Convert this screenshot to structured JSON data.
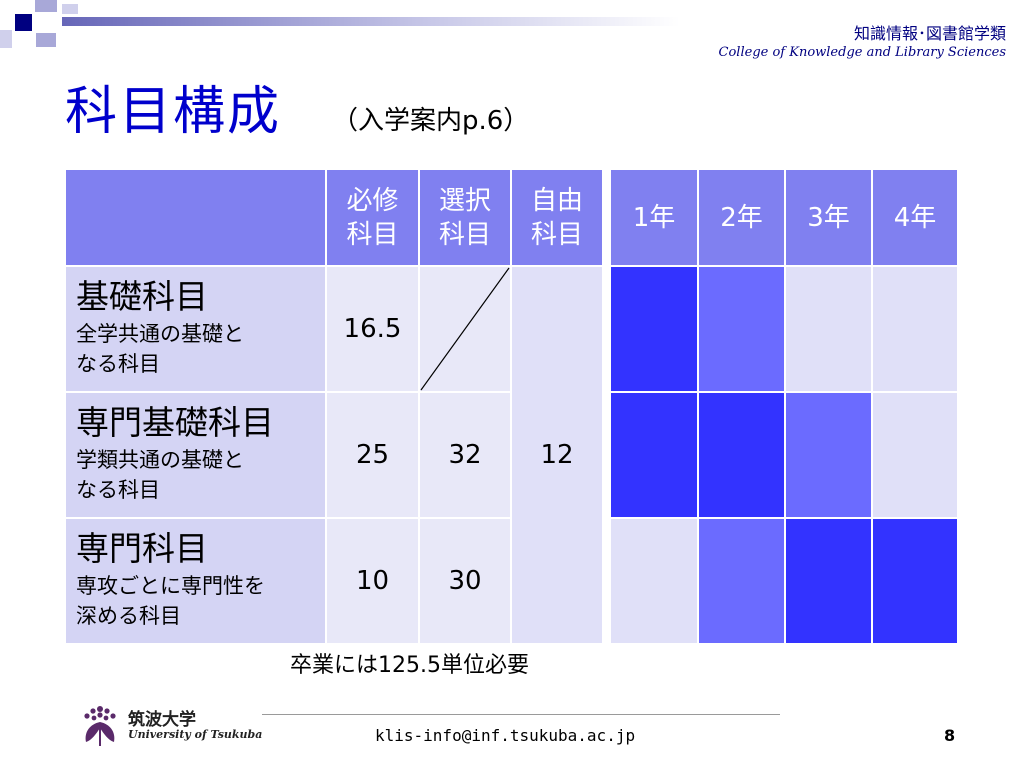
{
  "header": {
    "org_ja": "知識情報･図書館学類",
    "org_en": "College of Knowledge and Library Sciences"
  },
  "title": "科目構成",
  "subtitle": "（入学案内p.6）",
  "table": {
    "credit_headers": [
      [
        "必修",
        "科目"
      ],
      [
        "選択",
        "科目"
      ],
      [
        "自由",
        "科目"
      ]
    ],
    "year_headers": [
      "1年",
      "2年",
      "3年",
      "4年"
    ],
    "rows": [
      {
        "name": "基礎科目",
        "desc": [
          "全学共通の基礎と",
          "なる科目"
        ],
        "required": "16.5",
        "elective": ""
      },
      {
        "name": "専門基礎科目",
        "desc": [
          "学類共通の基礎と",
          "なる科目"
        ],
        "required": "25",
        "elective": "32"
      },
      {
        "name": "専門科目",
        "desc": [
          "専攻ごとに専門性を",
          "深める科目"
        ],
        "required": "10",
        "elective": "30"
      }
    ],
    "free": "12",
    "year_intensity": [
      [
        "dark",
        "mid",
        "pale",
        "pale"
      ],
      [
        "dark",
        "dark",
        "mid",
        "pale"
      ],
      [
        "pale",
        "mid",
        "dark",
        "dark"
      ]
    ],
    "colors": {
      "header": "#8080f0",
      "dark": "#3333ff",
      "mid": "#6b6bff",
      "pale": "#e0e0f8"
    }
  },
  "graduation_note": "卒業には125.5単位必要",
  "footer": {
    "email": "klis-info@inf.tsukuba.ac.jp",
    "page": "8",
    "univ_ja": "筑波大学",
    "univ_en": "University of Tsukuba",
    "logo_icon": "paulownia-crest-icon"
  }
}
